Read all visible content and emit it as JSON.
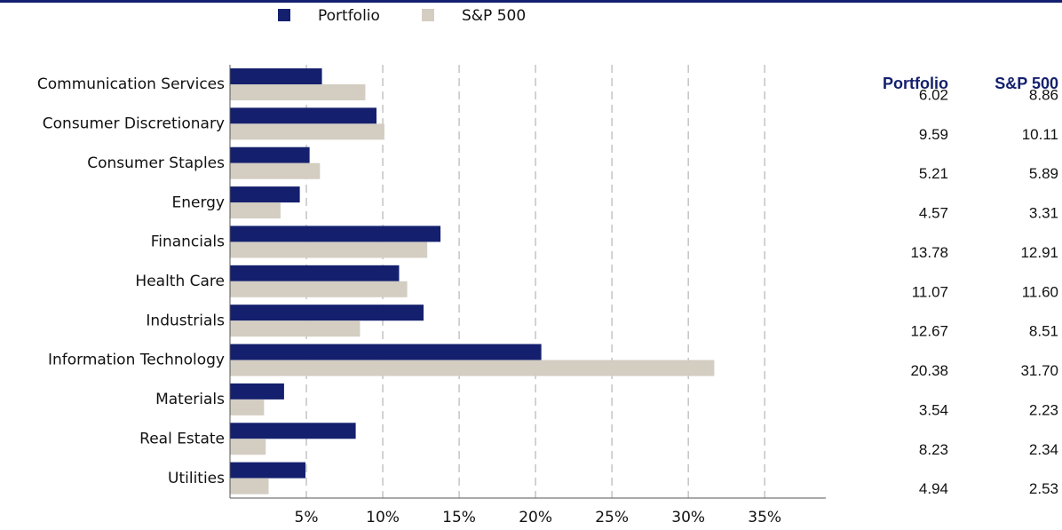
{
  "chart_data": {
    "type": "bar",
    "orientation": "horizontal",
    "categories": [
      "Communication Services",
      "Consumer Discretionary",
      "Consumer Staples",
      "Energy",
      "Financials",
      "Health Care",
      "Industrials",
      "Information Technology",
      "Materials",
      "Real Estate",
      "Utilities"
    ],
    "series": [
      {
        "name": "Portfolio",
        "color": "#14206e",
        "values": [
          6.02,
          9.59,
          5.21,
          4.57,
          13.78,
          11.07,
          12.67,
          20.38,
          3.54,
          8.23,
          4.94
        ],
        "value_labels": [
          "6.02",
          "9.59",
          "5.21",
          "4.57",
          "13.78",
          "11.07",
          "12.67",
          "20.38",
          "3.54",
          "8.23",
          "4.94"
        ]
      },
      {
        "name": "S&P 500",
        "color": "#d3cdc2",
        "values": [
          8.86,
          10.11,
          5.89,
          3.31,
          12.91,
          11.6,
          8.51,
          31.7,
          2.23,
          2.34,
          2.53
        ],
        "value_labels": [
          "8.86",
          "10.11",
          "5.89",
          "3.31",
          "12.91",
          "11.60",
          "8.51",
          "31.70",
          "2.23",
          "2.34",
          "2.53"
        ]
      }
    ],
    "xlim": [
      0,
      39
    ],
    "xticks": [
      {
        "value": 5,
        "label": "5%"
      },
      {
        "value": 10,
        "label": "10%"
      },
      {
        "value": 15,
        "label": "15%"
      },
      {
        "value": 20,
        "label": "20%"
      },
      {
        "value": 25,
        "label": "25%"
      },
      {
        "value": 30,
        "label": "30%"
      },
      {
        "value": 35,
        "label": "35%"
      }
    ],
    "grid": true,
    "legend": "top"
  }
}
